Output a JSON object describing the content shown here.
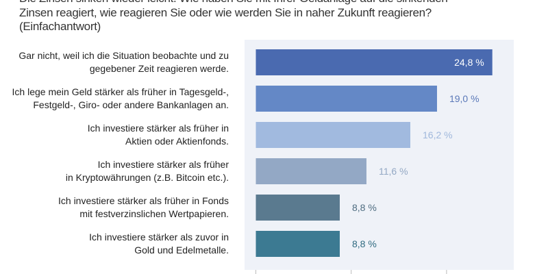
{
  "question": {
    "lines": [
      "Die Zinsen sinken wieder leicht. Wie haben Sie mit Ihrer Geldanlage auf die sinkenden",
      "Zinsen reagiert, wie reagieren Sie oder wie werden Sie in naher Zukunft reagieren?",
      "(Einfachantwort)"
    ]
  },
  "chart_data": {
    "type": "bar",
    "orientation": "horizontal",
    "categories": [
      [
        "Gar nicht, weil ich die Situation beobachte und zu",
        "gegebener Zeit reagieren werde."
      ],
      [
        "Ich lege mein Geld stärker als früher in Tagesgeld-,",
        "Festgeld-, Giro- oder andere Bankanlagen an."
      ],
      [
        "Ich investiere stärker als früher in",
        "Aktien oder Aktienfonds."
      ],
      [
        "Ich investiere stärker als früher",
        "in Kryptowährungen (z.B. Bitcoin etc.)."
      ],
      [
        "Ich investiere stärker als früher in Fonds",
        "mit festverzinslichen Wertpapieren."
      ],
      [
        "Ich investiere stärker als zuvor in",
        "Gold und Edelmetalle."
      ]
    ],
    "values": [
      24.8,
      19.0,
      16.2,
      11.6,
      8.8,
      8.8
    ],
    "data_labels": [
      "24,8 %",
      "19,0 %",
      "16,2 %",
      "11,6 %",
      "8,8 %",
      "8,8 %"
    ],
    "bar_colors": [
      "#4a6ab0",
      "#6488c6",
      "#a1badf",
      "#93a8c5",
      "#5a7a8f",
      "#3c7a92"
    ],
    "label_colors": [
      "#ffffff",
      "#5a78b8",
      "#a0b8dc",
      "#93a8c4",
      "#4e6c80",
      "#2f6a80"
    ],
    "xlim": [
      0,
      27
    ],
    "x_ticks": [
      0,
      10,
      20
    ],
    "tick_labels_visible": false,
    "panel_background": "#eff2f8",
    "grid": false
  }
}
